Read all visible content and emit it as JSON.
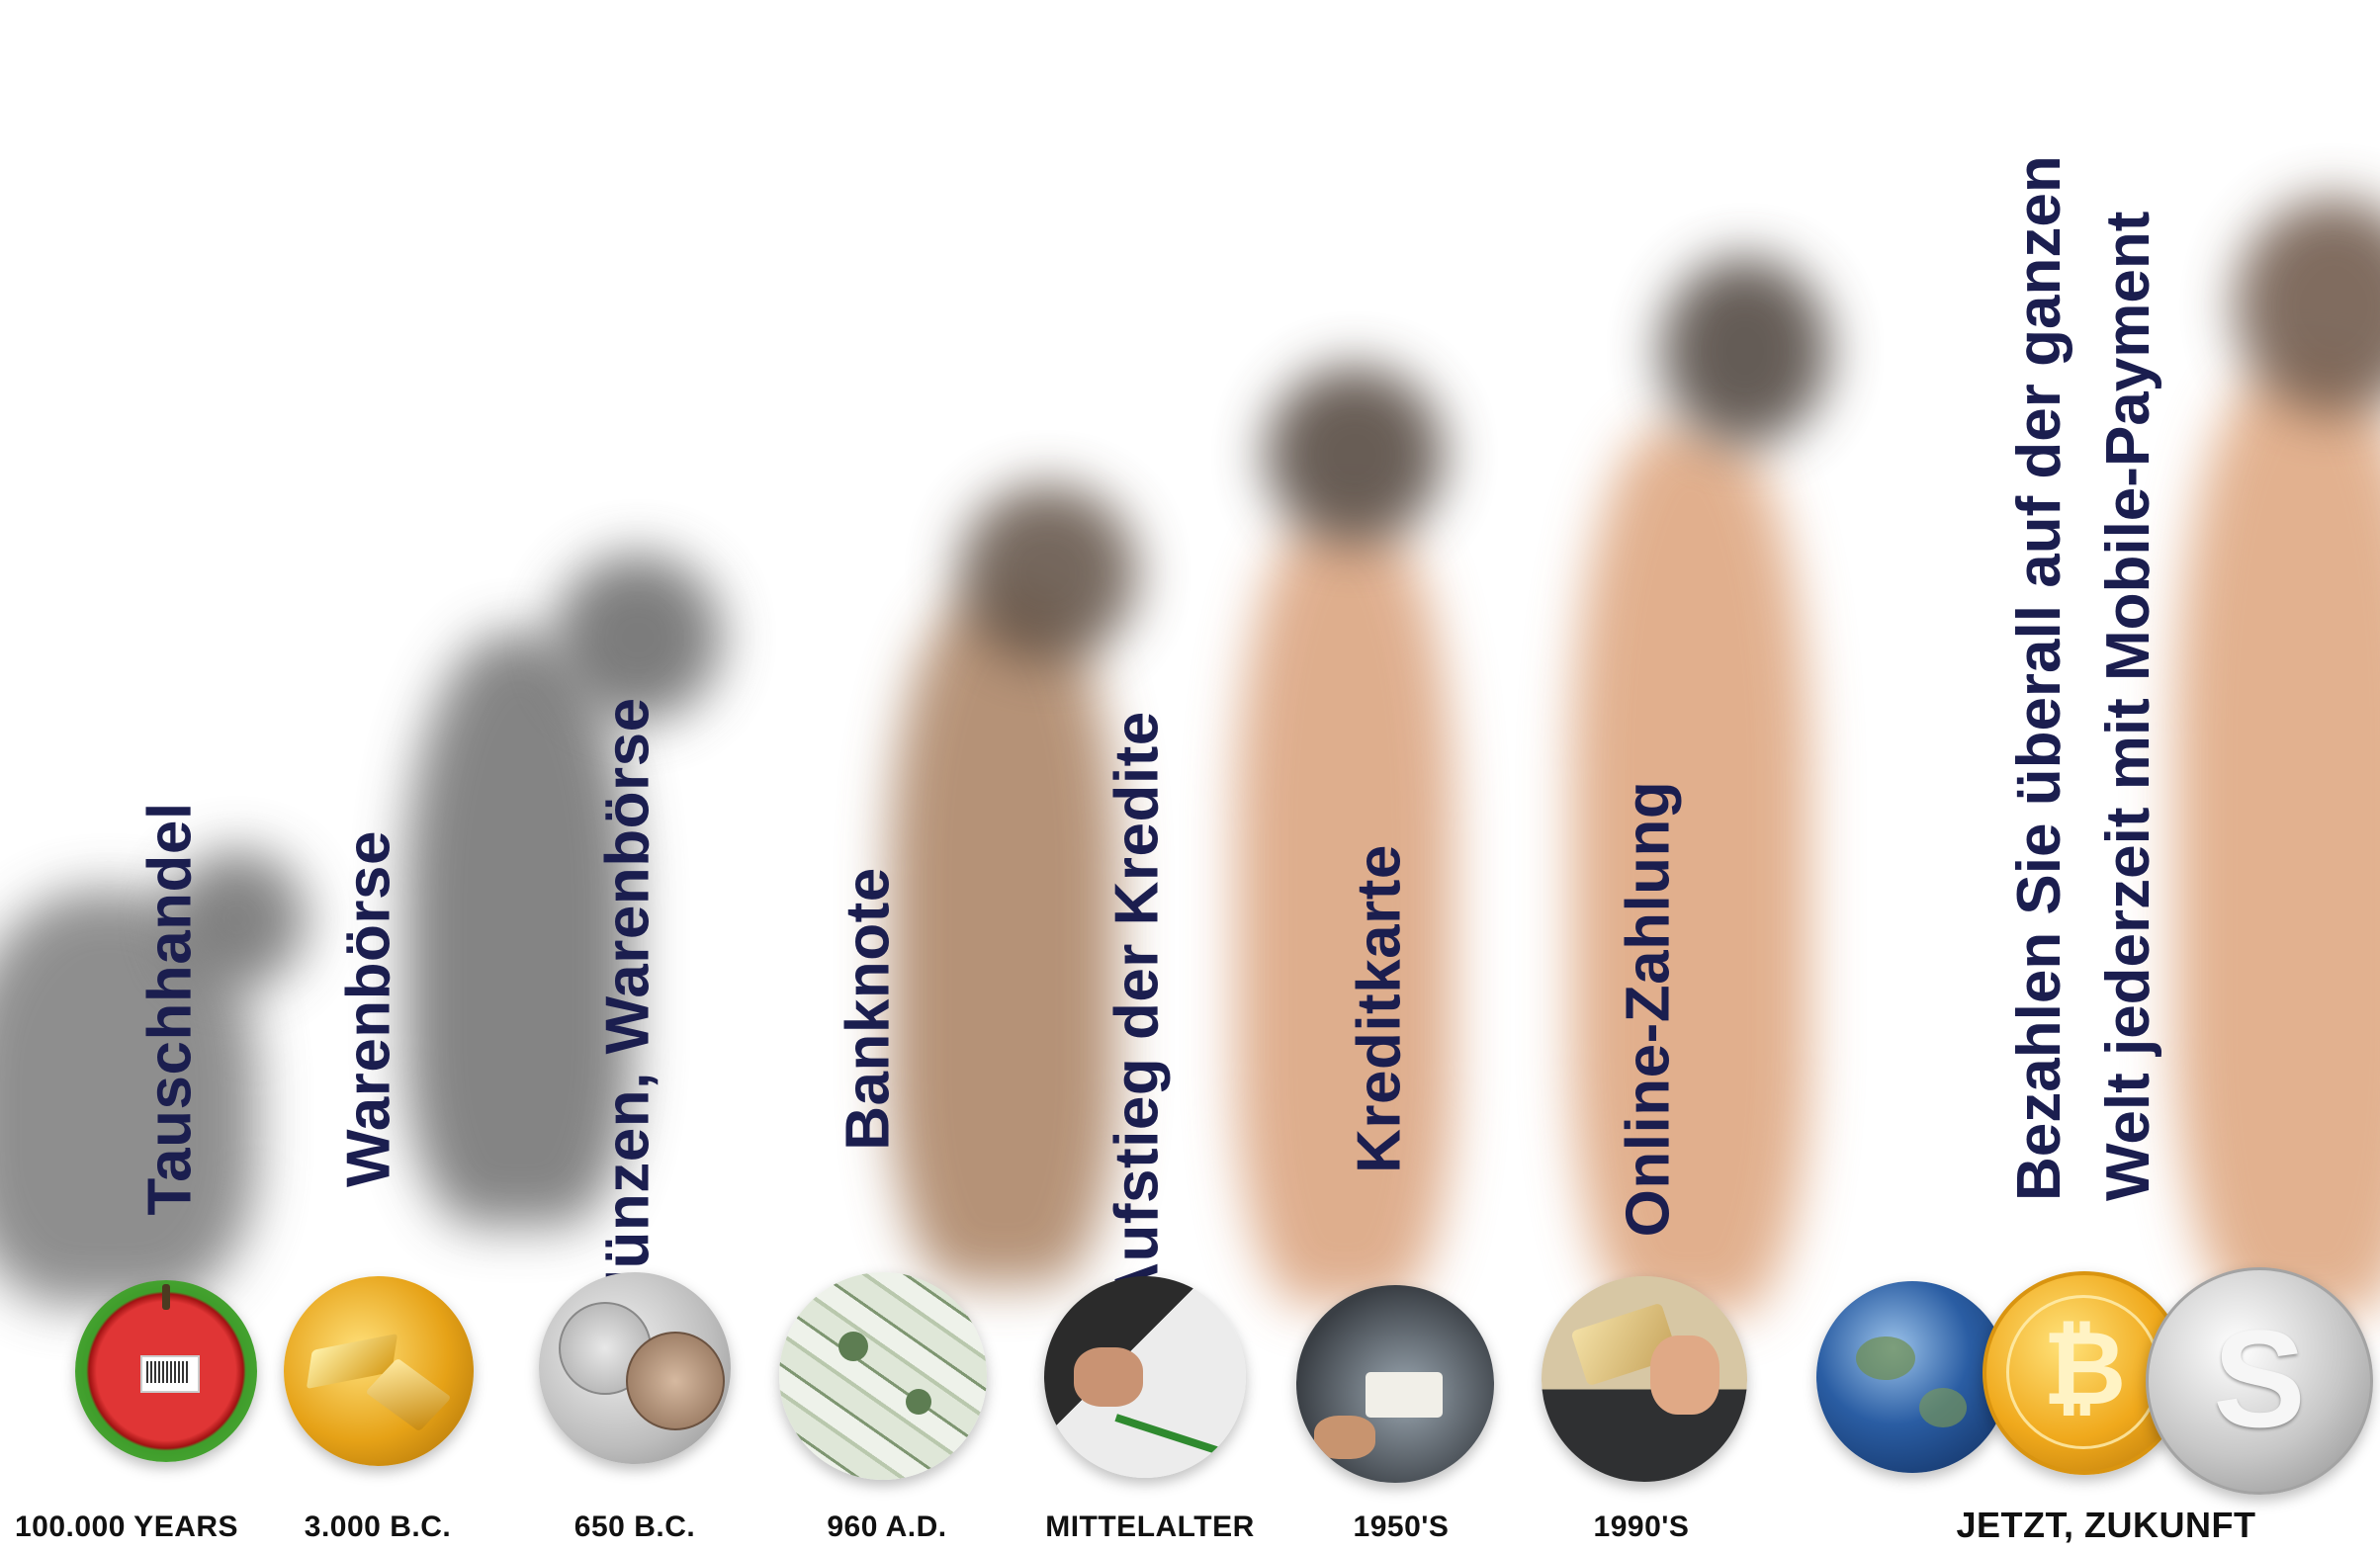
{
  "stages": [
    {
      "label": "Tauschhandel",
      "date": "100.000 YEARS",
      "icon": "apple-barcode-icon"
    },
    {
      "label": "Warenbörse",
      "date": "3.000 B.C.",
      "icon": "gold-bars-icon"
    },
    {
      "label": "Münzen, Warenbörse",
      "date": "650 B.C.",
      "icon": "coins-icon"
    },
    {
      "label": "Banknote",
      "date": "960 A.D.",
      "icon": "banknotes-icon"
    },
    {
      "label": "Aufstieg der Kredite",
      "date": "MITTELALTER",
      "icon": "signing-contract-icon"
    },
    {
      "label": "Kreditkarte",
      "date": "1950'S",
      "icon": "credit-card-icon"
    },
    {
      "label": "Online-Zahlung",
      "date": "1990'S",
      "icon": "online-card-payment-icon"
    }
  ],
  "final": {
    "line1": "Bezahlen Sie überall auf der ganzen",
    "line2": "Welt jederzeit mit Mobile-Payment",
    "date": "JETZT, ZUKUNFT",
    "icons": [
      "globe-icon",
      "bitcoin-coin-icon",
      "silver-s-coin-icon"
    ]
  },
  "colors": {
    "label_text": "#1b1e4f",
    "date_text": "#111111"
  }
}
